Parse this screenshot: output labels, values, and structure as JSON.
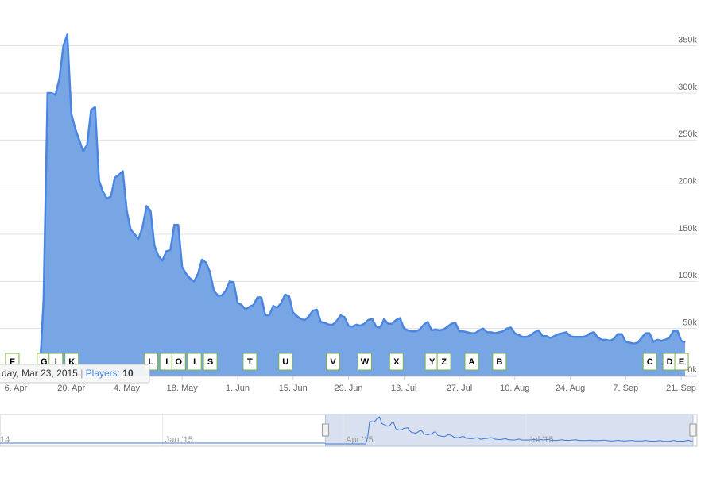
{
  "chart_data": {
    "type": "area",
    "x": [
      "2015-03-23",
      "2015-04-12",
      "2015-04-13",
      "2015-04-14",
      "2015-04-15",
      "2015-04-16",
      "2015-04-17",
      "2015-04-18",
      "2015-04-19",
      "2015-04-20",
      "2015-04-21",
      "2015-04-22",
      "2015-04-23",
      "2015-04-24",
      "2015-04-25",
      "2015-04-26",
      "2015-04-27",
      "2015-04-28",
      "2015-04-29",
      "2015-04-30",
      "2015-05-01",
      "2015-05-02",
      "2015-05-03",
      "2015-05-04",
      "2015-05-05",
      "2015-05-06",
      "2015-05-07",
      "2015-05-08",
      "2015-05-09",
      "2015-05-10",
      "2015-05-11",
      "2015-05-12",
      "2015-05-13",
      "2015-05-14",
      "2015-05-15",
      "2015-05-16",
      "2015-05-17",
      "2015-05-18",
      "2015-05-19",
      "2015-05-20",
      "2015-05-21",
      "2015-05-22",
      "2015-05-23",
      "2015-05-24",
      "2015-05-25",
      "2015-05-26",
      "2015-05-27",
      "2015-05-28",
      "2015-05-29",
      "2015-05-30",
      "2015-05-31",
      "2015-06-01",
      "2015-06-02",
      "2015-06-03",
      "2015-06-04",
      "2015-06-05",
      "2015-06-06",
      "2015-06-07",
      "2015-06-08",
      "2015-06-09",
      "2015-06-10",
      "2015-06-11",
      "2015-06-12",
      "2015-06-13",
      "2015-06-14",
      "2015-06-15",
      "2015-06-16",
      "2015-06-17",
      "2015-06-18",
      "2015-06-19",
      "2015-06-20",
      "2015-06-21",
      "2015-06-22",
      "2015-06-23",
      "2015-06-24",
      "2015-06-25",
      "2015-06-26",
      "2015-06-27",
      "2015-06-28",
      "2015-06-29",
      "2015-06-30",
      "2015-07-01",
      "2015-07-02",
      "2015-07-03",
      "2015-07-04",
      "2015-07-05",
      "2015-07-06",
      "2015-07-07",
      "2015-07-08",
      "2015-07-09",
      "2015-07-10",
      "2015-07-11",
      "2015-07-12",
      "2015-07-13",
      "2015-07-14",
      "2015-07-15",
      "2015-07-16",
      "2015-07-17",
      "2015-07-18",
      "2015-07-19",
      "2015-07-20",
      "2015-07-21",
      "2015-07-22",
      "2015-07-23",
      "2015-07-24",
      "2015-07-25",
      "2015-07-26",
      "2015-07-27",
      "2015-07-28",
      "2015-07-29",
      "2015-07-30",
      "2015-07-31",
      "2015-08-01",
      "2015-08-02",
      "2015-08-03",
      "2015-08-04",
      "2015-08-05",
      "2015-08-06",
      "2015-08-07",
      "2015-08-08",
      "2015-08-09",
      "2015-08-10",
      "2015-08-11",
      "2015-08-12",
      "2015-08-13",
      "2015-08-14",
      "2015-08-15",
      "2015-08-16",
      "2015-08-17",
      "2015-08-18",
      "2015-08-19",
      "2015-08-20",
      "2015-08-21",
      "2015-08-22",
      "2015-08-23",
      "2015-08-24",
      "2015-08-25",
      "2015-08-26",
      "2015-08-27",
      "2015-08-28",
      "2015-08-29",
      "2015-08-30",
      "2015-08-31",
      "2015-09-01",
      "2015-09-02",
      "2015-09-03",
      "2015-09-04",
      "2015-09-05",
      "2015-09-06",
      "2015-09-07",
      "2015-09-08",
      "2015-09-09",
      "2015-09-10",
      "2015-09-11",
      "2015-09-12",
      "2015-09-13",
      "2015-09-14",
      "2015-09-15",
      "2015-09-16",
      "2015-09-17",
      "2015-09-18",
      "2015-09-19",
      "2015-09-20",
      "2015-09-21",
      "2015-09-22"
    ],
    "values": [
      10,
      10,
      80000,
      300000,
      300000,
      298000,
      315000,
      350000,
      362000,
      278000,
      262000,
      250000,
      238000,
      245000,
      282000,
      285000,
      207000,
      195000,
      188000,
      190000,
      210000,
      213000,
      217000,
      175000,
      155000,
      150000,
      145000,
      158000,
      180000,
      175000,
      138000,
      127000,
      122000,
      132000,
      133000,
      160000,
      160000,
      115000,
      108000,
      103000,
      100000,
      108000,
      123000,
      120000,
      110000,
      90000,
      85000,
      85000,
      90000,
      100000,
      99000,
      77000,
      75000,
      70000,
      73000,
      75000,
      83000,
      83000,
      64000,
      64000,
      74000,
      72000,
      77000,
      86000,
      84000,
      67000,
      63000,
      60000,
      59000,
      63000,
      69000,
      70000,
      57000,
      56000,
      54000,
      54000,
      58000,
      64000,
      62000,
      53000,
      52000,
      54000,
      53000,
      55000,
      59000,
      60000,
      52000,
      51000,
      60000,
      55000,
      55000,
      59000,
      61000,
      50000,
      48000,
      47000,
      47000,
      49000,
      54000,
      57000,
      48000,
      49000,
      48000,
      49000,
      52000,
      55000,
      56000,
      47000,
      47000,
      46000,
      45000,
      45000,
      48000,
      50000,
      46000,
      46000,
      45000,
      46000,
      47000,
      50000,
      51000,
      45000,
      43000,
      41000,
      41000,
      43000,
      46000,
      48000,
      42000,
      42000,
      40000,
      42000,
      44000,
      45000,
      46000,
      42000,
      41000,
      41000,
      41000,
      42000,
      45000,
      46000,
      40000,
      38000,
      38000,
      37000,
      39000,
      44000,
      44000,
      36000,
      35000,
      34000,
      35000,
      40000,
      45000,
      45000,
      36000,
      38000,
      37000,
      38000,
      40000,
      47000,
      48000,
      37000,
      35000
    ],
    "color": "#4a86e0",
    "fill_color": "#78a5e4",
    "xlim": [
      "2015-04-02",
      "2015-09-25"
    ],
    "xticks": [
      {
        "value": "2015-04-06",
        "label": "6. Apr"
      },
      {
        "value": "2015-04-20",
        "label": "20. Apr"
      },
      {
        "value": "2015-05-04",
        "label": "4. May"
      },
      {
        "value": "2015-05-18",
        "label": "18. May"
      },
      {
        "value": "2015-06-01",
        "label": "1. Jun"
      },
      {
        "value": "2015-06-15",
        "label": "15. Jun"
      },
      {
        "value": "2015-06-29",
        "label": "29. Jun"
      },
      {
        "value": "2015-07-13",
        "label": "13. Jul"
      },
      {
        "value": "2015-07-27",
        "label": "27. Jul"
      },
      {
        "value": "2015-08-10",
        "label": "10. Aug"
      },
      {
        "value": "2015-08-24",
        "label": "24. Aug"
      },
      {
        "value": "2015-09-07",
        "label": "7. Sep"
      },
      {
        "value": "2015-09-21",
        "label": "21. Sep"
      }
    ],
    "ylim": [
      0,
      375000
    ],
    "yticks": [
      {
        "value": 0,
        "label": "0k"
      },
      {
        "value": 50000,
        "label": "50k"
      },
      {
        "value": 100000,
        "label": "100k"
      },
      {
        "value": 150000,
        "label": "150k"
      },
      {
        "value": 200000,
        "label": "200k"
      },
      {
        "value": 250000,
        "label": "250k"
      },
      {
        "value": 300000,
        "label": "300k"
      },
      {
        "value": 350000,
        "label": "350k"
      }
    ],
    "grid": true,
    "flag_color": "#7cb342",
    "flags": [
      {
        "title": "F",
        "x": "2015-04-05"
      },
      {
        "title": "G",
        "x": "2015-04-13"
      },
      {
        "title": "I",
        "x": "2015-04-16"
      },
      {
        "title": "K",
        "x": "2015-04-20"
      },
      {
        "title": "L",
        "x": "2015-05-10"
      },
      {
        "title": "I",
        "x": "2015-05-14"
      },
      {
        "title": "O",
        "x": "2015-05-17"
      },
      {
        "title": "I",
        "x": "2015-05-21"
      },
      {
        "title": "S",
        "x": "2015-05-25"
      },
      {
        "title": "T",
        "x": "2015-06-04"
      },
      {
        "title": "U",
        "x": "2015-06-13"
      },
      {
        "title": "V",
        "x": "2015-06-25"
      },
      {
        "title": "W",
        "x": "2015-07-03"
      },
      {
        "title": "X",
        "x": "2015-07-11"
      },
      {
        "title": "Y",
        "x": "2015-07-20"
      },
      {
        "title": "Z",
        "x": "2015-07-23"
      },
      {
        "title": "A",
        "x": "2015-07-30"
      },
      {
        "title": "B",
        "x": "2015-08-06"
      },
      {
        "title": "C",
        "x": "2015-09-13"
      },
      {
        "title": "D",
        "x": "2015-09-18"
      },
      {
        "title": "E",
        "x": "2015-09-21"
      }
    ],
    "tooltip": {
      "date": "day, Mar 23, 2015",
      "separator": "|",
      "label": "Players:",
      "value": 10
    },
    "navigator": {
      "xlim": [
        "2014-10-12",
        "2015-09-24"
      ],
      "xticks": [
        {
          "value": "2014-10-01",
          "label": "14"
        },
        {
          "value": "2015-01-01",
          "label": "Jan '15"
        },
        {
          "value": "2015-04-01",
          "label": "Apr '15"
        },
        {
          "value": "2015-07-01",
          "label": "Jul '15"
        }
      ]
    }
  }
}
